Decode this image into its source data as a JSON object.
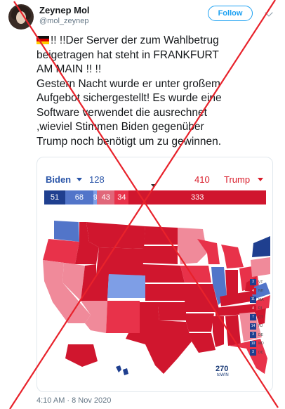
{
  "author": {
    "name": "Zeynep Mol",
    "handle": "@mol_zeynep",
    "follow_label": "Follow"
  },
  "tweet": {
    "lines": [
      "!! !!Der Server der zum Wahlbetrug",
      "beigetragen hat steht in FRANKFURT",
      "AM MAIN !! !!",
      "Gestern Nacht wurde er unter großem",
      "Aufgebot sichergestellt! Es wurde eine",
      "Software verwendet die ausrechnet",
      ",wieviel Stimmen Biden gegenüber",
      "Trump noch benötigt um zu gewinnen."
    ],
    "flag_icon": "germany-flag-icon",
    "timestamp": "4:10 AM · 8 Nov 2020"
  },
  "electoral_map": {
    "biden_label": "Biden",
    "biden_total": "128",
    "trump_total": "410",
    "trump_label": "Trump",
    "segments": [
      {
        "value": 51,
        "label": "51",
        "color": "#1f3f8f"
      },
      {
        "value": 68,
        "label": "68",
        "color": "#5275c9"
      },
      {
        "value": 9,
        "label": "9",
        "color": "#7e9ee6"
      },
      {
        "value": 43,
        "label": "43",
        "color": "#e0677a"
      },
      {
        "value": 34,
        "label": "34",
        "color": "#e8324a"
      },
      {
        "value": 333,
        "label": "333",
        "color": "#d0162e"
      }
    ],
    "legend": [
      {
        "ev": "3",
        "state": "VT",
        "color": "#1f3f8f"
      },
      {
        "ev": "4",
        "state": "NH",
        "color": "#d0162e"
      },
      {
        "ev": "11",
        "state": "MA",
        "color": "#1f3f8f"
      },
      {
        "ev": "4",
        "state": "RI",
        "color": "#d0162e"
      },
      {
        "ev": "7",
        "state": "CT",
        "color": "#1f3f8f"
      },
      {
        "ev": "14",
        "state": "NJ",
        "color": "#1f3f8f"
      },
      {
        "ev": "3",
        "state": "DE",
        "color": "#1f3f8f"
      },
      {
        "ev": "10",
        "state": "MD",
        "color": "#1f3f8f"
      },
      {
        "ev": "3",
        "state": "DC",
        "color": "#1f3f8f"
      }
    ],
    "logo_number": "270",
    "logo_text": "toWIN",
    "colors": {
      "safe_dem": "#1f3f8f",
      "likely_dem": "#5275c9",
      "lean_dem": "#7e9ee6",
      "lean_rep": "#f08a9a",
      "likely_rep": "#e8324a",
      "safe_rep": "#d0162e"
    }
  },
  "overlay_color": "#e8222b"
}
